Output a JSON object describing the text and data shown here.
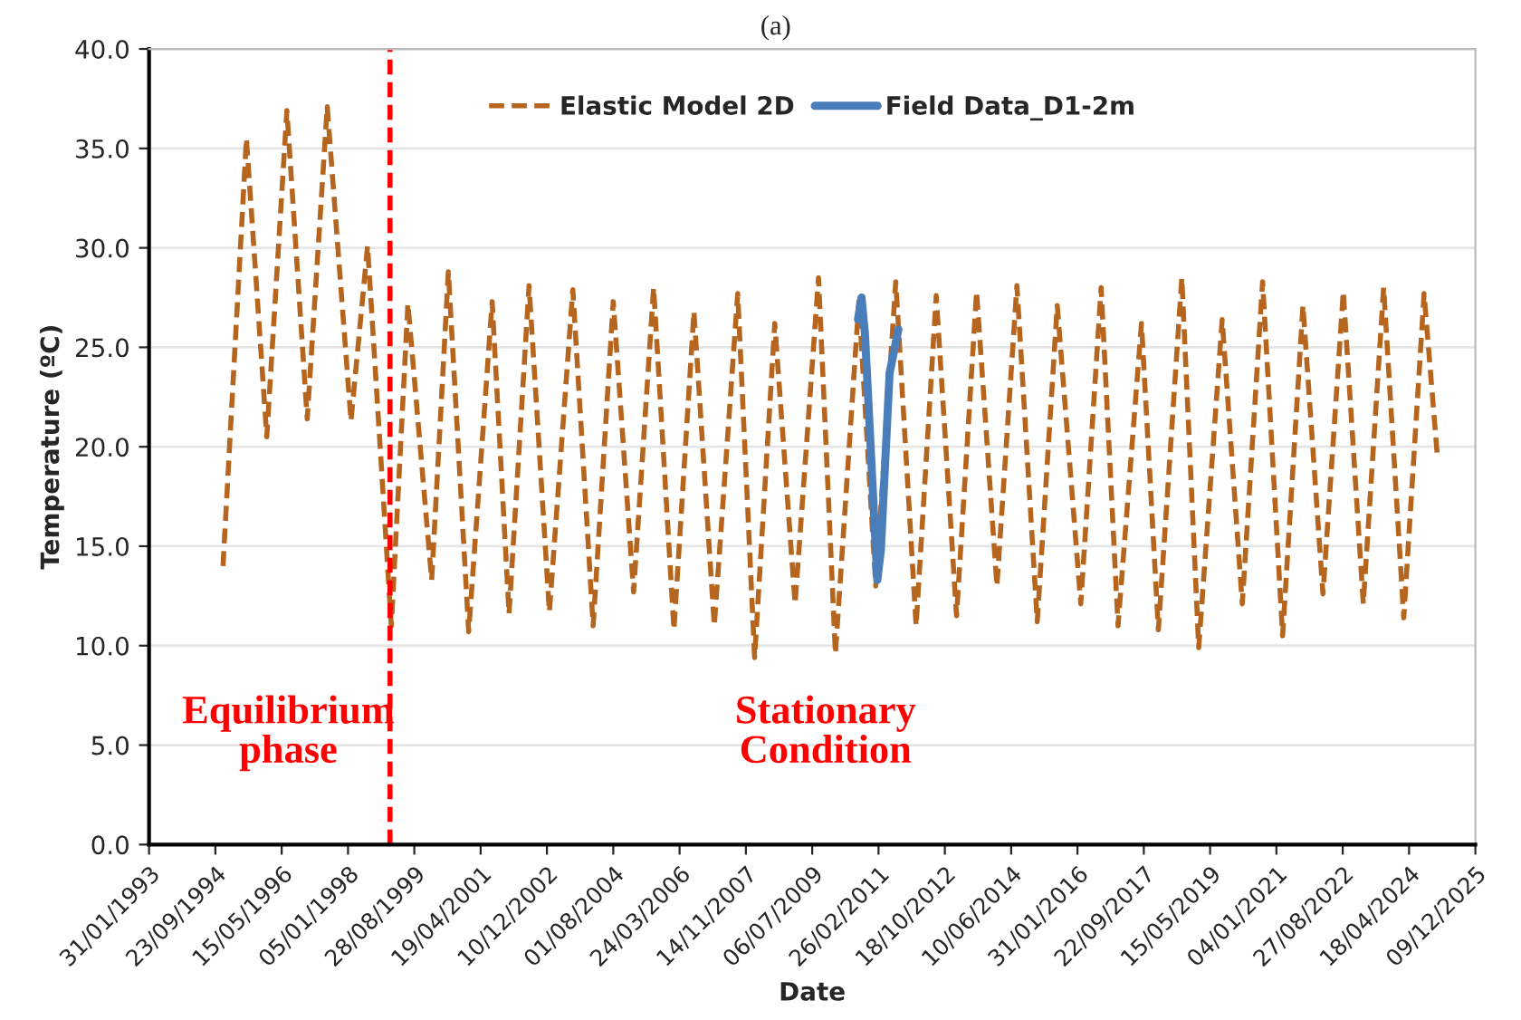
{
  "chart_data": {
    "type": "line",
    "title": "(a)",
    "xlabel": "Date",
    "ylabel": "Temperature (ºC)",
    "xlim": [
      "1993-01-31",
      "2025-12-09"
    ],
    "xticks": [
      {
        "value": "1993-01-31",
        "label": "31/01/1993"
      },
      {
        "value": "1994-09-23",
        "label": "23/09/1994"
      },
      {
        "value": "1996-05-15",
        "label": "15/05/1996"
      },
      {
        "value": "1998-01-05",
        "label": "05/01/1998"
      },
      {
        "value": "1999-08-28",
        "label": "28/08/1999"
      },
      {
        "value": "2001-04-19",
        "label": "19/04/2001"
      },
      {
        "value": "2002-12-10",
        "label": "10/12/2002"
      },
      {
        "value": "2004-08-01",
        "label": "01/08/2004"
      },
      {
        "value": "2006-03-24",
        "label": "24/03/2006"
      },
      {
        "value": "2007-11-14",
        "label": "14/11/2007"
      },
      {
        "value": "2009-07-06",
        "label": "06/07/2009"
      },
      {
        "value": "2011-02-26",
        "label": "26/02/2011"
      },
      {
        "value": "2012-10-18",
        "label": "18/10/2012"
      },
      {
        "value": "2014-06-10",
        "label": "10/06/2014"
      },
      {
        "value": "2016-01-31",
        "label": "31/01/2016"
      },
      {
        "value": "2017-09-22",
        "label": "22/09/2017"
      },
      {
        "value": "2019-05-15",
        "label": "15/05/2019"
      },
      {
        "value": "2021-01-04",
        "label": "04/01/2021"
      },
      {
        "value": "2022-08-27",
        "label": "27/08/2022"
      },
      {
        "value": "2024-04-18",
        "label": "18/04/2024"
      },
      {
        "value": "2025-12-09",
        "label": "09/12/2025"
      }
    ],
    "ylim": [
      0,
      40
    ],
    "yticks": [
      {
        "value": 0,
        "label": "0.0"
      },
      {
        "value": 5,
        "label": "5.0"
      },
      {
        "value": 10,
        "label": "10.0"
      },
      {
        "value": 15,
        "label": "15.0"
      },
      {
        "value": 20,
        "label": "20.0"
      },
      {
        "value": 25,
        "label": "25.0"
      },
      {
        "value": 30,
        "label": "30.0"
      },
      {
        "value": 35,
        "label": "35.0"
      },
      {
        "value": 40,
        "label": "40.0"
      }
    ],
    "grid": "y",
    "legend": "top",
    "marker": "none",
    "series": [
      {
        "name": "Elastic Model 2D",
        "color": "#b5651d",
        "line_style": "dashed",
        "x": [
          "1994-12",
          "1995-07",
          "1996-01",
          "1996-07",
          "1997-01",
          "1997-07",
          "1998-02",
          "1998-07",
          "1999-02",
          "1999-07",
          "2000-02",
          "2000-07",
          "2001-01",
          "2001-08",
          "2002-01",
          "2002-07",
          "2003-01",
          "2003-08",
          "2004-02",
          "2004-08",
          "2005-02",
          "2005-08",
          "2006-02",
          "2006-08",
          "2007-02",
          "2007-09",
          "2008-02",
          "2008-08",
          "2009-02",
          "2009-09",
          "2010-02",
          "2010-09",
          "2011-02",
          "2011-08",
          "2012-02",
          "2012-08",
          "2013-02",
          "2013-08",
          "2014-02",
          "2014-08",
          "2015-02",
          "2015-08",
          "2016-03",
          "2016-09",
          "2017-02",
          "2017-09",
          "2018-02",
          "2018-09",
          "2019-02",
          "2019-09",
          "2020-03",
          "2020-09",
          "2021-03",
          "2021-09",
          "2022-03",
          "2022-09",
          "2023-03",
          "2023-09",
          "2024-03",
          "2024-09",
          "2025-01"
        ],
        "values": [
          14.0,
          35.5,
          20.5,
          36.9,
          21.4,
          37.1,
          21.3,
          30.1,
          11.0,
          27.2,
          13.3,
          28.8,
          10.7,
          27.3,
          11.6,
          28.1,
          11.7,
          27.9,
          11.0,
          27.3,
          12.7,
          28.0,
          10.8,
          26.8,
          11.0,
          27.7,
          9.4,
          26.2,
          12.1,
          28.5,
          9.6,
          27.3,
          13.0,
          28.3,
          11.0,
          27.6,
          11.5,
          27.8,
          13.0,
          28.1,
          11.2,
          27.1,
          12.1,
          28.0,
          11.0,
          26.2,
          10.8,
          28.5,
          9.9,
          26.4,
          12.1,
          28.3,
          10.5,
          27.1,
          12.6,
          27.8,
          12.1,
          28.0,
          11.4,
          27.7,
          19.4
        ]
      },
      {
        "name": "Field Data_D1-2m",
        "color": "#4a7ebb",
        "line_style": "solid",
        "x": [
          "2010-08-24",
          "2010-09-25",
          "2010-10-26",
          "2011-02-15",
          "2011-03-19",
          "2011-06-06",
          "2011-08-25"
        ],
        "values": [
          26.4,
          27.5,
          25.7,
          13.3,
          14.8,
          23.7,
          25.9
        ]
      }
    ],
    "ref_lines": [
      {
        "axis": "x",
        "value": "1999-01-20",
        "color": "#ff0000",
        "line_style": "dashed"
      }
    ],
    "annotations": [
      "Equilibrium\nphase",
      "Stationary\nCondition"
    ]
  }
}
